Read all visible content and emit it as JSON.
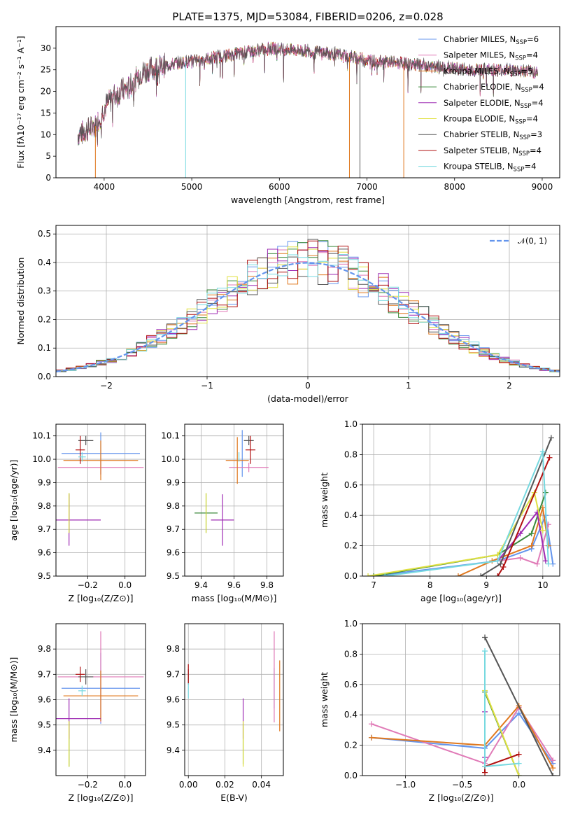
{
  "figure": {
    "colors": [
      "#6495ED",
      "#E07AB7",
      "#E0781E",
      "#3B8A3B",
      "#9E2BB3",
      "#E0E040",
      "#555555",
      "#B01010",
      "#77D9E0"
    ]
  },
  "chart_data": [
    {
      "id": "spectrum",
      "type": "line",
      "title": "PLATE=1375, MJD=53084, FIBERID=0206, z=0.028",
      "xlabel": "wavelength [Angstrom, rest frame]",
      "ylabel": "Flux [fλ10⁻¹⁷ erg cm⁻² s⁻¹ A⁻¹]",
      "xlim": [
        3450,
        9200
      ],
      "ylim": [
        0,
        35
      ],
      "xticks": [
        4000,
        5000,
        6000,
        7000,
        8000,
        9000
      ],
      "yticks": [
        0,
        5,
        10,
        15,
        20,
        25,
        30
      ],
      "grid": false,
      "legend_position": "top-right",
      "continuum_x": [
        3700,
        3800,
        3900,
        4000,
        4100,
        4200,
        4300,
        4400,
        4500,
        4700,
        5000,
        5300,
        5600,
        5900,
        6200,
        6500,
        6800,
        7100,
        7400,
        7800,
        8200,
        8600,
        8950
      ],
      "continuum_y": [
        10,
        11,
        12,
        16,
        19,
        20,
        21,
        24,
        25,
        26,
        27,
        28,
        29,
        30,
        29.5,
        29,
        28,
        27,
        26.5,
        25.5,
        25,
        25,
        24.5
      ],
      "series": [
        {
          "name": "Chabrier MILES, N_SSP=6",
          "label_main": "Chabrier MILES, N",
          "label_sub": "SSP",
          "label_tail": "=6"
        },
        {
          "name": "Salpeter MILES, N_SSP=4",
          "label_main": "Salpeter MILES, N",
          "label_sub": "SSP",
          "label_tail": "=4"
        },
        {
          "name": "Kroupa MILES, N_SSP=5",
          "label_main": "Kroupa MILES, N",
          "label_sub": "SSP",
          "label_tail": "=5"
        },
        {
          "name": "Chabrier ELODIE, N_SSP=4",
          "label_main": "Chabrier ELODIE, N",
          "label_sub": "SSP",
          "label_tail": "=4"
        },
        {
          "name": "Salpeter ELODIE, N_SSP=4",
          "label_main": "Salpeter ELODIE, N",
          "label_sub": "SSP",
          "label_tail": "=4"
        },
        {
          "name": "Kroupa ELODIE, N_SSP=4",
          "label_main": "Kroupa ELODIE, N",
          "label_sub": "SSP",
          "label_tail": "=4"
        },
        {
          "name": "Chabrier STELIB, N_SSP=3",
          "label_main": "Chabrier STELIB, N",
          "label_sub": "SSP",
          "label_tail": "=3"
        },
        {
          "name": "Salpeter STELIB, N_SSP=4",
          "label_main": "Salpeter STELIB, N",
          "label_sub": "SSP",
          "label_tail": "=4"
        },
        {
          "name": "Kroupa STELIB, N_SSP=4",
          "label_main": "Kroupa STELIB, N",
          "label_sub": "SSP",
          "label_tail": "=4"
        }
      ],
      "dropouts": [
        {
          "x": 3900,
          "series": 2
        },
        {
          "x": 4930,
          "series": 8
        },
        {
          "x": 6800,
          "series": 2
        },
        {
          "x": 6920,
          "series": 6
        },
        {
          "x": 7420,
          "series": 2
        }
      ]
    },
    {
      "id": "residuals",
      "type": "step",
      "xlabel": "(data-model)/error",
      "ylabel": "Normed distribution",
      "xlim": [
        -2.5,
        2.5
      ],
      "ylim": [
        0,
        0.53
      ],
      "xticks": [
        -2,
        -1,
        0,
        1,
        2
      ],
      "yticks": [
        0.0,
        0.1,
        0.2,
        0.3,
        0.4,
        0.5
      ],
      "grid": true,
      "bin_width": 0.1,
      "legend": "𝒩(0, 1)",
      "legend_position": "top-right",
      "reference": {
        "type": "gaussian",
        "mean": 0,
        "sigma": 1
      }
    },
    {
      "id": "age_vs_Z",
      "type": "errorbar",
      "xlabel": "Z [log₁₀(Z/Z⊙)]",
      "ylabel": "age  [log₁₀(age/yr)]",
      "xlim": [
        -0.37,
        0.11
      ],
      "ylim": [
        9.5,
        10.15
      ],
      "xticks": [
        -0.2,
        0.0
      ],
      "yticks": [
        9.5,
        9.6,
        9.7,
        9.8,
        9.9,
        10.0,
        10.1
      ],
      "grid": true,
      "points": [
        {
          "series": 0,
          "x": -0.13,
          "xerr": 0.21,
          "y": 10.025,
          "yerr": 0.09
        },
        {
          "series": 1,
          "x": -0.13,
          "xerr": 0.23,
          "y": 9.965,
          "yerr": 0.03
        },
        {
          "series": 2,
          "x": -0.13,
          "xerr": 0.2,
          "y": 9.995,
          "yerr": 0.085
        },
        {
          "series": 3,
          "x": -0.3,
          "xerr": 0.0,
          "y": 9.77,
          "yerr": 0.085
        },
        {
          "series": 4,
          "x": -0.3,
          "xerr": 0.17,
          "y": 9.74,
          "yerr": 0.11
        },
        {
          "series": 5,
          "x": -0.3,
          "xerr": 0.0,
          "y": 9.77,
          "yerr": 0.085
        },
        {
          "series": 6,
          "x": -0.21,
          "xerr": 0.04,
          "y": 10.08,
          "yerr": 0.02
        },
        {
          "series": 7,
          "x": -0.24,
          "xerr": 0.025,
          "y": 10.04,
          "yerr": 0.06
        },
        {
          "series": 8,
          "x": -0.23,
          "xerr": 0.02,
          "y": 10.01,
          "yerr": 0.02
        }
      ]
    },
    {
      "id": "age_vs_mass",
      "type": "errorbar",
      "xlabel": "mass [log₁₀(M/M⊙)]",
      "xlim": [
        9.3,
        9.9
      ],
      "ylim": [
        9.5,
        10.15
      ],
      "xticks": [
        9.4,
        9.6,
        9.8
      ],
      "yticks": [
        9.5,
        9.6,
        9.7,
        9.8,
        9.9,
        10.0,
        10.1
      ],
      "grid": true,
      "points": [
        {
          "series": 0,
          "x": 9.65,
          "xerr": 0.0,
          "y": 10.025,
          "yerr": 0.1
        },
        {
          "series": 1,
          "x": 9.69,
          "xerr": 0.12,
          "y": 9.965,
          "yerr": 0.02
        },
        {
          "series": 2,
          "x": 9.62,
          "xerr": 0.07,
          "y": 9.995,
          "yerr": 0.1
        },
        {
          "series": 3,
          "x": 9.43,
          "xerr": 0.07,
          "y": 9.77,
          "yerr": 0.085
        },
        {
          "series": 4,
          "x": 9.53,
          "xerr": 0.07,
          "y": 9.74,
          "yerr": 0.11
        },
        {
          "series": 5,
          "x": 9.43,
          "xerr": 0.0,
          "y": 9.77,
          "yerr": 0.085
        },
        {
          "series": 6,
          "x": 9.69,
          "xerr": 0.03,
          "y": 10.08,
          "yerr": 0.02
        },
        {
          "series": 7,
          "x": 9.7,
          "xerr": 0.03,
          "y": 10.04,
          "yerr": 0.06
        },
        {
          "series": 8,
          "x": 9.63,
          "xerr": 0.0,
          "y": 10.01,
          "yerr": 0.02
        }
      ]
    },
    {
      "id": "massweight_vs_age",
      "type": "line",
      "xlabel": "age  [log₁₀(age/yr)]",
      "ylabel": "mass weight",
      "xlim": [
        6.8,
        10.3
      ],
      "ylim": [
        0,
        1
      ],
      "xticks": [
        7,
        8,
        9,
        10
      ],
      "yticks": [
        0.0,
        0.2,
        0.4,
        0.6,
        0.8,
        1.0
      ],
      "grid": true,
      "series": [
        {
          "series": 0,
          "x": [
            7.0,
            9.2,
            9.8,
            10.05,
            10.18
          ],
          "y": [
            0.0,
            0.1,
            0.18,
            0.4,
            0.08
          ]
        },
        {
          "series": 1,
          "x": [
            9.2,
            9.6,
            9.9,
            10.1
          ],
          "y": [
            0.1,
            0.12,
            0.08,
            0.34
          ]
        },
        {
          "series": 2,
          "x": [
            8.5,
            9.1,
            9.8,
            10.0,
            10.1
          ],
          "y": [
            0.0,
            0.1,
            0.2,
            0.45,
            0.2
          ]
        },
        {
          "series": 3,
          "x": [
            7.0,
            9.2,
            9.8,
            10.05
          ],
          "y": [
            0.0,
            0.14,
            0.28,
            0.55
          ]
        },
        {
          "series": 4,
          "x": [
            9.2,
            9.6,
            9.9,
            10.05
          ],
          "y": [
            0.1,
            0.28,
            0.42,
            0.1
          ]
        },
        {
          "series": 5,
          "x": [
            6.9,
            9.2,
            9.85,
            10.0
          ],
          "y": [
            0.0,
            0.14,
            0.55,
            0.3
          ]
        },
        {
          "series": 6,
          "x": [
            8.9,
            9.25,
            10.15
          ],
          "y": [
            0.0,
            0.08,
            0.91
          ]
        },
        {
          "series": 7,
          "x": [
            9.2,
            9.3,
            10.12
          ],
          "y": [
            0.0,
            0.06,
            0.78
          ]
        },
        {
          "series": 8,
          "x": [
            7.2,
            9.2,
            10.0,
            10.1
          ],
          "y": [
            0.0,
            0.1,
            0.82,
            0.08
          ]
        }
      ]
    },
    {
      "id": "mass_vs_Z",
      "type": "errorbar",
      "xlabel": "Z [log₁₀(Z/Z⊙)]",
      "ylabel": "mass [log₁₀(M/M⊙)]",
      "xlim": [
        -0.37,
        0.11
      ],
      "ylim": [
        9.3,
        9.9
      ],
      "xticks": [
        -0.2,
        0.0
      ],
      "yticks": [
        9.4,
        9.5,
        9.6,
        9.7,
        9.8
      ],
      "grid": true,
      "points": [
        {
          "series": 0,
          "x": -0.13,
          "xerr": 0.21,
          "y": 9.645,
          "yerr": 0.14
        },
        {
          "series": 1,
          "x": -0.13,
          "xerr": 0.23,
          "y": 9.69,
          "yerr": 0.18
        },
        {
          "series": 2,
          "x": -0.13,
          "xerr": 0.2,
          "y": 9.615,
          "yerr": 0.1
        },
        {
          "series": 3,
          "x": -0.3,
          "xerr": 0.0,
          "y": 9.425,
          "yerr": 0.09
        },
        {
          "series": 4,
          "x": -0.3,
          "xerr": 0.17,
          "y": 9.525,
          "yerr": 0.08
        },
        {
          "series": 5,
          "x": -0.3,
          "xerr": 0.0,
          "y": 9.425,
          "yerr": 0.09
        },
        {
          "series": 6,
          "x": -0.21,
          "xerr": 0.04,
          "y": 9.69,
          "yerr": 0.03
        },
        {
          "series": 7,
          "x": -0.24,
          "xerr": 0.025,
          "y": 9.7,
          "yerr": 0.03
        },
        {
          "series": 8,
          "x": -0.23,
          "xerr": 0.02,
          "y": 9.635,
          "yerr": 0.02
        }
      ]
    },
    {
      "id": "mass_vs_ebv",
      "type": "errorbar",
      "xlabel": "E(B-V)",
      "xlim": [
        -0.002,
        0.052
      ],
      "ylim": [
        9.3,
        9.9
      ],
      "xticks": [
        0.0,
        0.02,
        0.04
      ],
      "yticks": [
        9.4,
        9.5,
        9.6,
        9.7,
        9.8
      ],
      "grid": true,
      "points": [
        {
          "series": 0,
          "x": 0.047,
          "xerr": 0,
          "y": 9.645,
          "yerr": 0.08
        },
        {
          "series": 1,
          "x": 0.047,
          "xerr": 0,
          "y": 9.69,
          "yerr": 0.18
        },
        {
          "series": 2,
          "x": 0.05,
          "xerr": 0,
          "y": 9.615,
          "yerr": 0.14
        },
        {
          "series": 3,
          "x": 0.03,
          "xerr": 0,
          "y": 9.425,
          "yerr": 0.08
        },
        {
          "series": 4,
          "x": 0.03,
          "xerr": 0,
          "y": 9.525,
          "yerr": 0.08
        },
        {
          "series": 5,
          "x": 0.03,
          "xerr": 0,
          "y": 9.425,
          "yerr": 0.09
        },
        {
          "series": 6,
          "x": 0.0,
          "xerr": 0,
          "y": 9.69,
          "yerr": 0.03
        },
        {
          "series": 7,
          "x": 0.0,
          "xerr": 0,
          "y": 9.7,
          "yerr": 0.04
        },
        {
          "series": 8,
          "x": 0.0,
          "xerr": 0,
          "y": 9.635,
          "yerr": 0.03
        }
      ]
    },
    {
      "id": "massweight_vs_Z",
      "type": "line",
      "xlabel": "Z [log₁₀(Z/Z⊙)]",
      "ylabel": "mass weight",
      "xlim": [
        -1.38,
        0.36
      ],
      "ylim": [
        0,
        1
      ],
      "xticks": [
        -1.0,
        -0.5,
        0.0
      ],
      "yticks": [
        0.0,
        0.2,
        0.4,
        0.6,
        0.8,
        1.0
      ],
      "grid": true,
      "series": [
        {
          "series": 0,
          "x": [
            -1.3,
            -0.3,
            0.0,
            0.3
          ],
          "y": [
            0.25,
            0.18,
            0.41,
            0.08
          ]
        },
        {
          "series": 1,
          "x": [
            -1.3,
            -0.3,
            0.0,
            0.3
          ],
          "y": [
            0.34,
            0.08,
            0.45,
            0.1
          ]
        },
        {
          "series": 2,
          "x": [
            -1.3,
            -0.3,
            0.0,
            0.3
          ],
          "y": [
            0.25,
            0.2,
            0.46,
            0.05
          ]
        },
        {
          "series": 3,
          "x": [
            -0.3,
            0.0
          ],
          "y": [
            0.55,
            0.0
          ]
        },
        {
          "series": 4,
          "x": [
            -0.3,
            -0.3
          ],
          "y": [
            0.12,
            0.42
          ]
        },
        {
          "series": 5,
          "x": [
            -0.3,
            0.0
          ],
          "y": [
            0.56,
            0.0
          ]
        },
        {
          "series": 6,
          "x": [
            -0.3,
            0.3
          ],
          "y": [
            0.91,
            0.0
          ]
        },
        {
          "series": 7,
          "x": [
            -0.3,
            -0.3,
            0.0
          ],
          "y": [
            0.02,
            0.06,
            0.14
          ]
        },
        {
          "series": 8,
          "x": [
            -0.3,
            -0.3,
            0.0
          ],
          "y": [
            0.82,
            0.06,
            0.08
          ]
        }
      ]
    }
  ]
}
